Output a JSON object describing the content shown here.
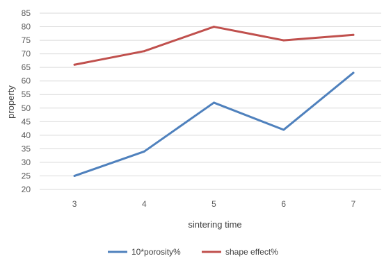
{
  "chart_data": {
    "type": "line",
    "xlabel": "sintering time",
    "ylabel": "property",
    "categories": [
      "3",
      "4",
      "5",
      "6",
      "7"
    ],
    "ylim": [
      20,
      85
    ],
    "yticks": [
      20,
      25,
      30,
      35,
      40,
      45,
      50,
      55,
      60,
      65,
      70,
      75,
      80,
      85
    ],
    "grid": true,
    "legend_position": "bottom",
    "series": [
      {
        "name": "10*porosity%",
        "color": "#4f81bd",
        "values": [
          25,
          34,
          52,
          42,
          63
        ]
      },
      {
        "name": "shape effect%",
        "color": "#c0504d",
        "values": [
          66,
          71,
          80,
          75,
          77
        ]
      }
    ]
  }
}
